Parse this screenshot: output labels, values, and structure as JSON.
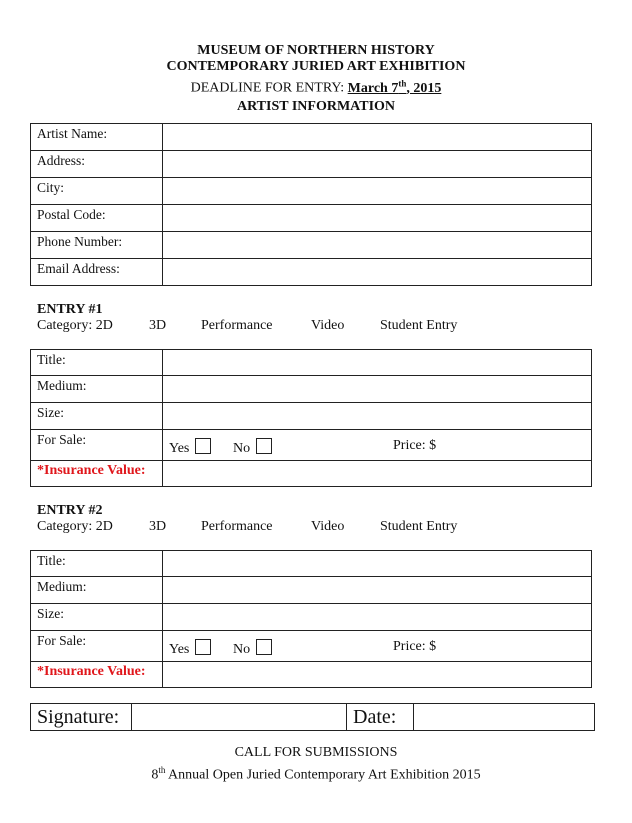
{
  "header": {
    "org": "MUSEUM OF NORTHERN HISTORY",
    "exhibition": "CONTEMPORARY JURIED ART EXHIBITION",
    "deadline_label": "DEADLINE FOR ENTRY: ",
    "deadline_month": "March 7",
    "deadline_sup": "th",
    "deadline_year": ", 2015"
  },
  "artist": {
    "title": "ARTIST INFORMATION",
    "fields": [
      "Artist Name:",
      "Address:",
      "City:",
      "Postal Code:",
      "Phone Number:",
      "Email Address:"
    ]
  },
  "entries": [
    {
      "title": "ENTRY #1",
      "category_label": "Category: 2D",
      "categories": [
        "3D",
        "Performance",
        "Video",
        "Student Entry"
      ],
      "fields": [
        "Title:",
        "Medium:",
        "Size:",
        "For Sale:"
      ],
      "yes": "Yes",
      "no": "No",
      "price": "Price: $",
      "insurance": "*Insurance Value:"
    },
    {
      "title": "ENTRY #2",
      "category_label": "Category: 2D",
      "categories": [
        "3D",
        "Performance",
        "Video",
        "Student Entry"
      ],
      "fields": [
        "Title:",
        "Medium:",
        "Size:",
        "For Sale:"
      ],
      "yes": "Yes",
      "no": "No",
      "price": "Price: $",
      "insurance": "*Insurance Value:"
    }
  ],
  "signature": {
    "signature_label": "Signature:",
    "date_label": "Date:"
  },
  "footer": {
    "call": "CALL FOR SUBMISSIONS",
    "line_num": "8",
    "line_sup": "th",
    "line_rest": " Annual Open Juried Contemporary Art Exhibition 2015"
  },
  "colors": {
    "insurance": "#e0161b"
  }
}
